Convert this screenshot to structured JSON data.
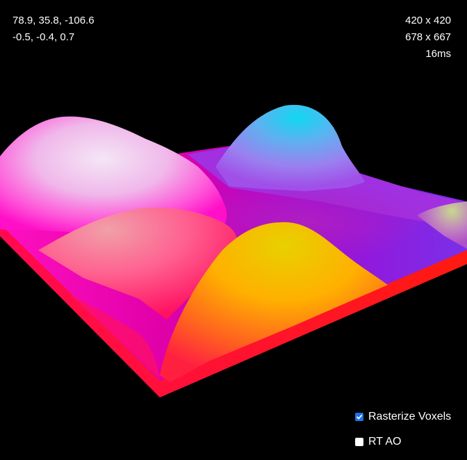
{
  "hud": {
    "camera_position": "78.9, 35.8, -106.6",
    "camera_direction": "-0.5, -0.4, 0.7",
    "volume_size": "420 x 420",
    "canvas_size": "678 x 667",
    "frame_time": "16ms"
  },
  "controls": {
    "rasterize_voxels": {
      "label": "Rasterize Voxels",
      "checked": true
    },
    "rt_ao": {
      "label": "RT AO",
      "checked": false
    }
  },
  "colors": {
    "background": "#000000",
    "checkbox_accent": "#1a73e8"
  }
}
